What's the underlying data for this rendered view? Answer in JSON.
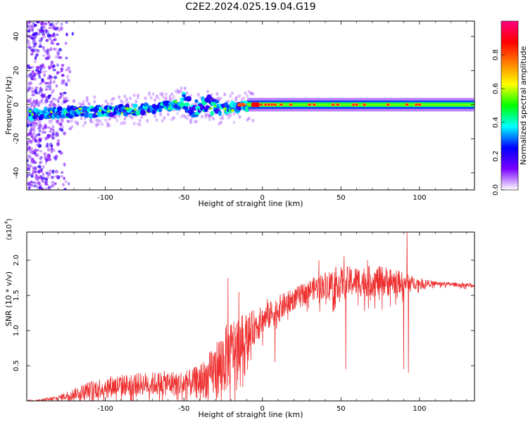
{
  "title": "C2E2.2024.025.19.04.G19",
  "chart_data": [
    {
      "type": "heatmap",
      "xlabel": "Height of straight line (km)",
      "ylabel": "Frequency (Hz)",
      "xlim": [
        -150,
        135
      ],
      "ylim": [
        -50,
        49
      ],
      "x_ticks": [
        -100,
        -50,
        0,
        50,
        100
      ],
      "y_ticks": [
        -40,
        -20,
        0,
        20,
        40
      ],
      "colorbar": {
        "label": "Normalized spectral amplitude",
        "range": [
          0,
          1
        ],
        "ticks": [
          0.0,
          0.2,
          0.4,
          0.6,
          0.8
        ],
        "colormap": "rainbow",
        "colors": [
          "#ffffff",
          "#7a00ff",
          "#0000ff",
          "#00ffff",
          "#00ff00",
          "#ffff00",
          "#ff8000",
          "#ff0000",
          "#ff0080"
        ]
      },
      "ridge": [
        {
          "x": -150,
          "f": -6
        },
        {
          "x": -120,
          "f": -4
        },
        {
          "x": -100,
          "f": -4
        },
        {
          "x": -80,
          "f": -3
        },
        {
          "x": -60,
          "f": -1
        },
        {
          "x": -50,
          "f": 2
        },
        {
          "x": -45,
          "f": -3
        },
        {
          "x": -35,
          "f": 1
        },
        {
          "x": -28,
          "f": -3
        },
        {
          "x": -20,
          "f": -2
        },
        {
          "x": -12,
          "f": -1
        },
        {
          "x": 0,
          "f": 0
        },
        {
          "x": 50,
          "f": 0
        },
        {
          "x": 100,
          "f": 0
        },
        {
          "x": 135,
          "f": 0
        }
      ],
      "scatter_region": {
        "x_range": [
          -150,
          -120
        ],
        "f_range": [
          -50,
          49
        ]
      }
    },
    {
      "type": "line",
      "xlabel": "Height of straight line (km)",
      "ylabel": "SNR (10 * v/v)",
      "y_multiplier": "(x10⁴)",
      "y_multiplier_base": "(x10",
      "y_multiplier_exp": "4",
      "y_multiplier_close": ")",
      "xlim": [
        -150,
        135
      ],
      "ylim": [
        0,
        2.4
      ],
      "x_ticks": [
        -100,
        -50,
        0,
        50,
        100
      ],
      "y_ticks": [
        0.5,
        1.0,
        1.5,
        2.0
      ],
      "color": "#ee3030",
      "envelope": [
        {
          "x": -150,
          "base": 0.0,
          "amp": 0.01
        },
        {
          "x": -140,
          "base": 0.01,
          "amp": 0.02
        },
        {
          "x": -130,
          "base": 0.04,
          "amp": 0.04
        },
        {
          "x": -120,
          "base": 0.1,
          "amp": 0.08
        },
        {
          "x": -110,
          "base": 0.16,
          "amp": 0.12
        },
        {
          "x": -100,
          "base": 0.2,
          "amp": 0.16
        },
        {
          "x": -80,
          "base": 0.24,
          "amp": 0.16
        },
        {
          "x": -60,
          "base": 0.25,
          "amp": 0.18
        },
        {
          "x": -45,
          "base": 0.25,
          "amp": 0.2
        },
        {
          "x": -35,
          "base": 0.33,
          "amp": 0.3
        },
        {
          "x": -25,
          "base": 0.55,
          "amp": 0.5
        },
        {
          "x": -18,
          "base": 0.75,
          "amp": 0.45
        },
        {
          "x": -10,
          "base": 0.95,
          "amp": 0.3
        },
        {
          "x": 0,
          "base": 1.15,
          "amp": 0.2
        },
        {
          "x": 10,
          "base": 1.3,
          "amp": 0.2
        },
        {
          "x": 20,
          "base": 1.45,
          "amp": 0.15
        },
        {
          "x": 30,
          "base": 1.58,
          "amp": 0.15
        },
        {
          "x": 45,
          "base": 1.68,
          "amp": 0.22
        },
        {
          "x": 60,
          "base": 1.7,
          "amp": 0.22
        },
        {
          "x": 80,
          "base": 1.7,
          "amp": 0.22
        },
        {
          "x": 95,
          "base": 1.68,
          "amp": 0.1
        },
        {
          "x": 110,
          "base": 1.67,
          "amp": 0.03
        },
        {
          "x": 135,
          "base": 1.64,
          "amp": 0.03
        }
      ],
      "spikes": [
        {
          "x": -22,
          "y": 1.75
        },
        {
          "x": -15,
          "y": 1.55
        },
        {
          "x": 3,
          "y": 1.45
        },
        {
          "x": 8,
          "y": 0.55
        },
        {
          "x": 36,
          "y": 2.0
        },
        {
          "x": 52,
          "y": 2.06
        },
        {
          "x": 53,
          "y": 0.45
        },
        {
          "x": 67,
          "y": 2.0
        },
        {
          "x": 75,
          "y": 1.6
        },
        {
          "x": 90,
          "y": 0.45
        },
        {
          "x": 92,
          "y": 2.4
        },
        {
          "x": 93,
          "y": 0.4
        }
      ]
    }
  ]
}
